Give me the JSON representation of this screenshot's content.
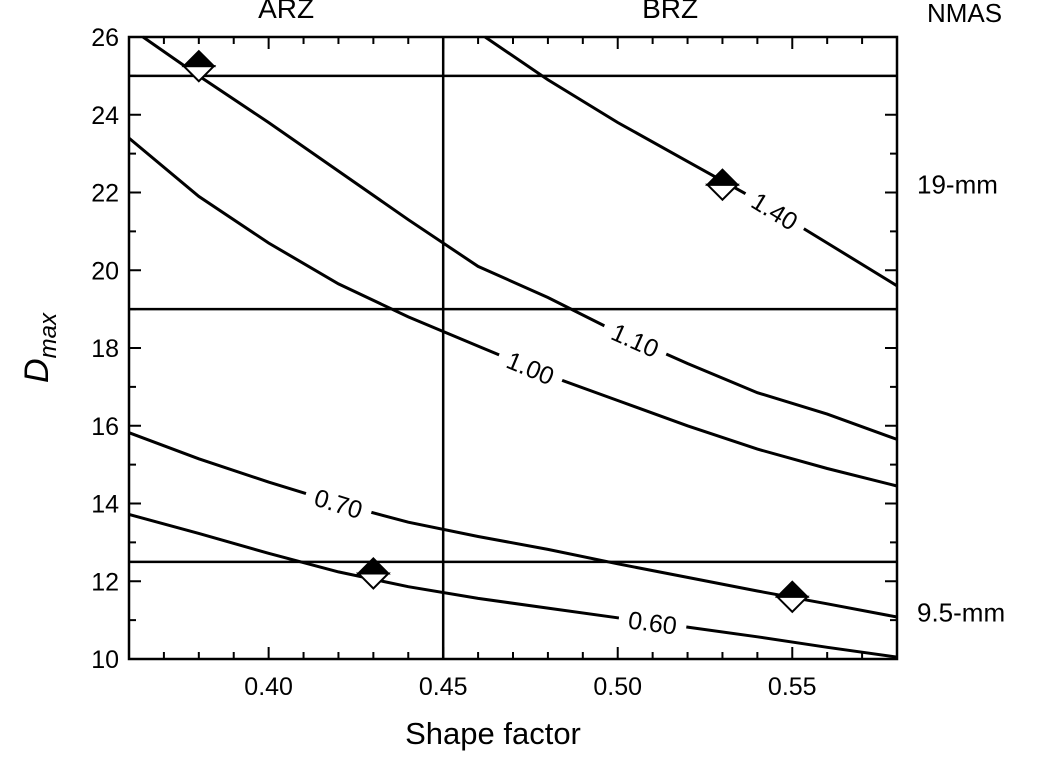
{
  "chart_data": {
    "type": "line",
    "xlabel": "Shape factor",
    "ylabel_main": "D",
    "ylabel_sub": "max",
    "xlim": [
      0.36,
      0.58
    ],
    "ylim": [
      10,
      26
    ],
    "x_ticks": [
      0.4,
      0.45,
      0.5,
      0.55
    ],
    "x_tick_labels": [
      "0.40",
      "0.45",
      "0.50",
      "0.55"
    ],
    "y_ticks": [
      10,
      12,
      14,
      16,
      18,
      20,
      22,
      24,
      26
    ],
    "y_tick_labels": [
      "10",
      "12",
      "14",
      "16",
      "18",
      "20",
      "22",
      "24",
      "26"
    ],
    "x_minor_step": 0.01,
    "y_minor_step": 1,
    "grid": false,
    "zone_labels": [
      {
        "text": "ARZ",
        "x": 0.405
      },
      {
        "text": "BRZ",
        "x": 0.515
      }
    ],
    "zone_divider_x": 0.45,
    "nmas_title": "NMAS",
    "nmas_boundaries": [
      25,
      19,
      12.5
    ],
    "nmas_labels": [
      {
        "text": "19-mm",
        "y": 22.2
      },
      {
        "text": "9.5-mm",
        "y": 11.2
      }
    ],
    "series": [
      {
        "name": "0.60",
        "label_at": 0.51,
        "points": [
          [
            0.36,
            13.72
          ],
          [
            0.38,
            13.23
          ],
          [
            0.4,
            12.72
          ],
          [
            0.42,
            12.24
          ],
          [
            0.44,
            11.86
          ],
          [
            0.46,
            11.56
          ],
          [
            0.48,
            11.31
          ],
          [
            0.5,
            11.06
          ],
          [
            0.52,
            10.82
          ],
          [
            0.54,
            10.57
          ],
          [
            0.56,
            10.3
          ],
          [
            0.58,
            10.05
          ]
        ]
      },
      {
        "name": "0.70",
        "label_at": 0.42,
        "points": [
          [
            0.36,
            15.82
          ],
          [
            0.38,
            15.15
          ],
          [
            0.4,
            14.55
          ],
          [
            0.42,
            14.0
          ],
          [
            0.44,
            13.52
          ],
          [
            0.46,
            13.15
          ],
          [
            0.48,
            12.82
          ],
          [
            0.5,
            12.45
          ],
          [
            0.52,
            12.1
          ],
          [
            0.54,
            11.75
          ],
          [
            0.56,
            11.42
          ],
          [
            0.58,
            11.08
          ]
        ]
      },
      {
        "name": "1.00",
        "label_at": 0.475,
        "points": [
          [
            0.36,
            23.4
          ],
          [
            0.38,
            21.9
          ],
          [
            0.4,
            20.7
          ],
          [
            0.42,
            19.65
          ],
          [
            0.44,
            18.8
          ],
          [
            0.46,
            18.05
          ],
          [
            0.48,
            17.3
          ],
          [
            0.5,
            16.65
          ],
          [
            0.52,
            16.0
          ],
          [
            0.54,
            15.4
          ],
          [
            0.56,
            14.9
          ],
          [
            0.58,
            14.45
          ]
        ]
      },
      {
        "name": "1.10",
        "label_at": 0.505,
        "points": [
          [
            0.364,
            26.0
          ],
          [
            0.38,
            25.0
          ],
          [
            0.4,
            23.8
          ],
          [
            0.42,
            22.55
          ],
          [
            0.44,
            21.3
          ],
          [
            0.46,
            20.1
          ],
          [
            0.48,
            19.3
          ],
          [
            0.5,
            18.4
          ],
          [
            0.52,
            17.6
          ],
          [
            0.54,
            16.85
          ],
          [
            0.56,
            16.3
          ],
          [
            0.58,
            15.65
          ]
        ]
      },
      {
        "name": "1.40",
        "label_at": 0.545,
        "points": [
          [
            0.462,
            26.0
          ],
          [
            0.48,
            24.9
          ],
          [
            0.5,
            23.8
          ],
          [
            0.52,
            22.8
          ],
          [
            0.54,
            21.8
          ],
          [
            0.56,
            20.7
          ],
          [
            0.58,
            19.6
          ]
        ]
      }
    ],
    "markers": [
      {
        "x": 0.38,
        "y": 25.25,
        "style": "split-diamond"
      },
      {
        "x": 0.43,
        "y": 12.2,
        "style": "split-diamond"
      },
      {
        "x": 0.53,
        "y": 22.2,
        "style": "split-diamond"
      },
      {
        "x": 0.55,
        "y": 11.6,
        "style": "split-diamond"
      }
    ]
  }
}
